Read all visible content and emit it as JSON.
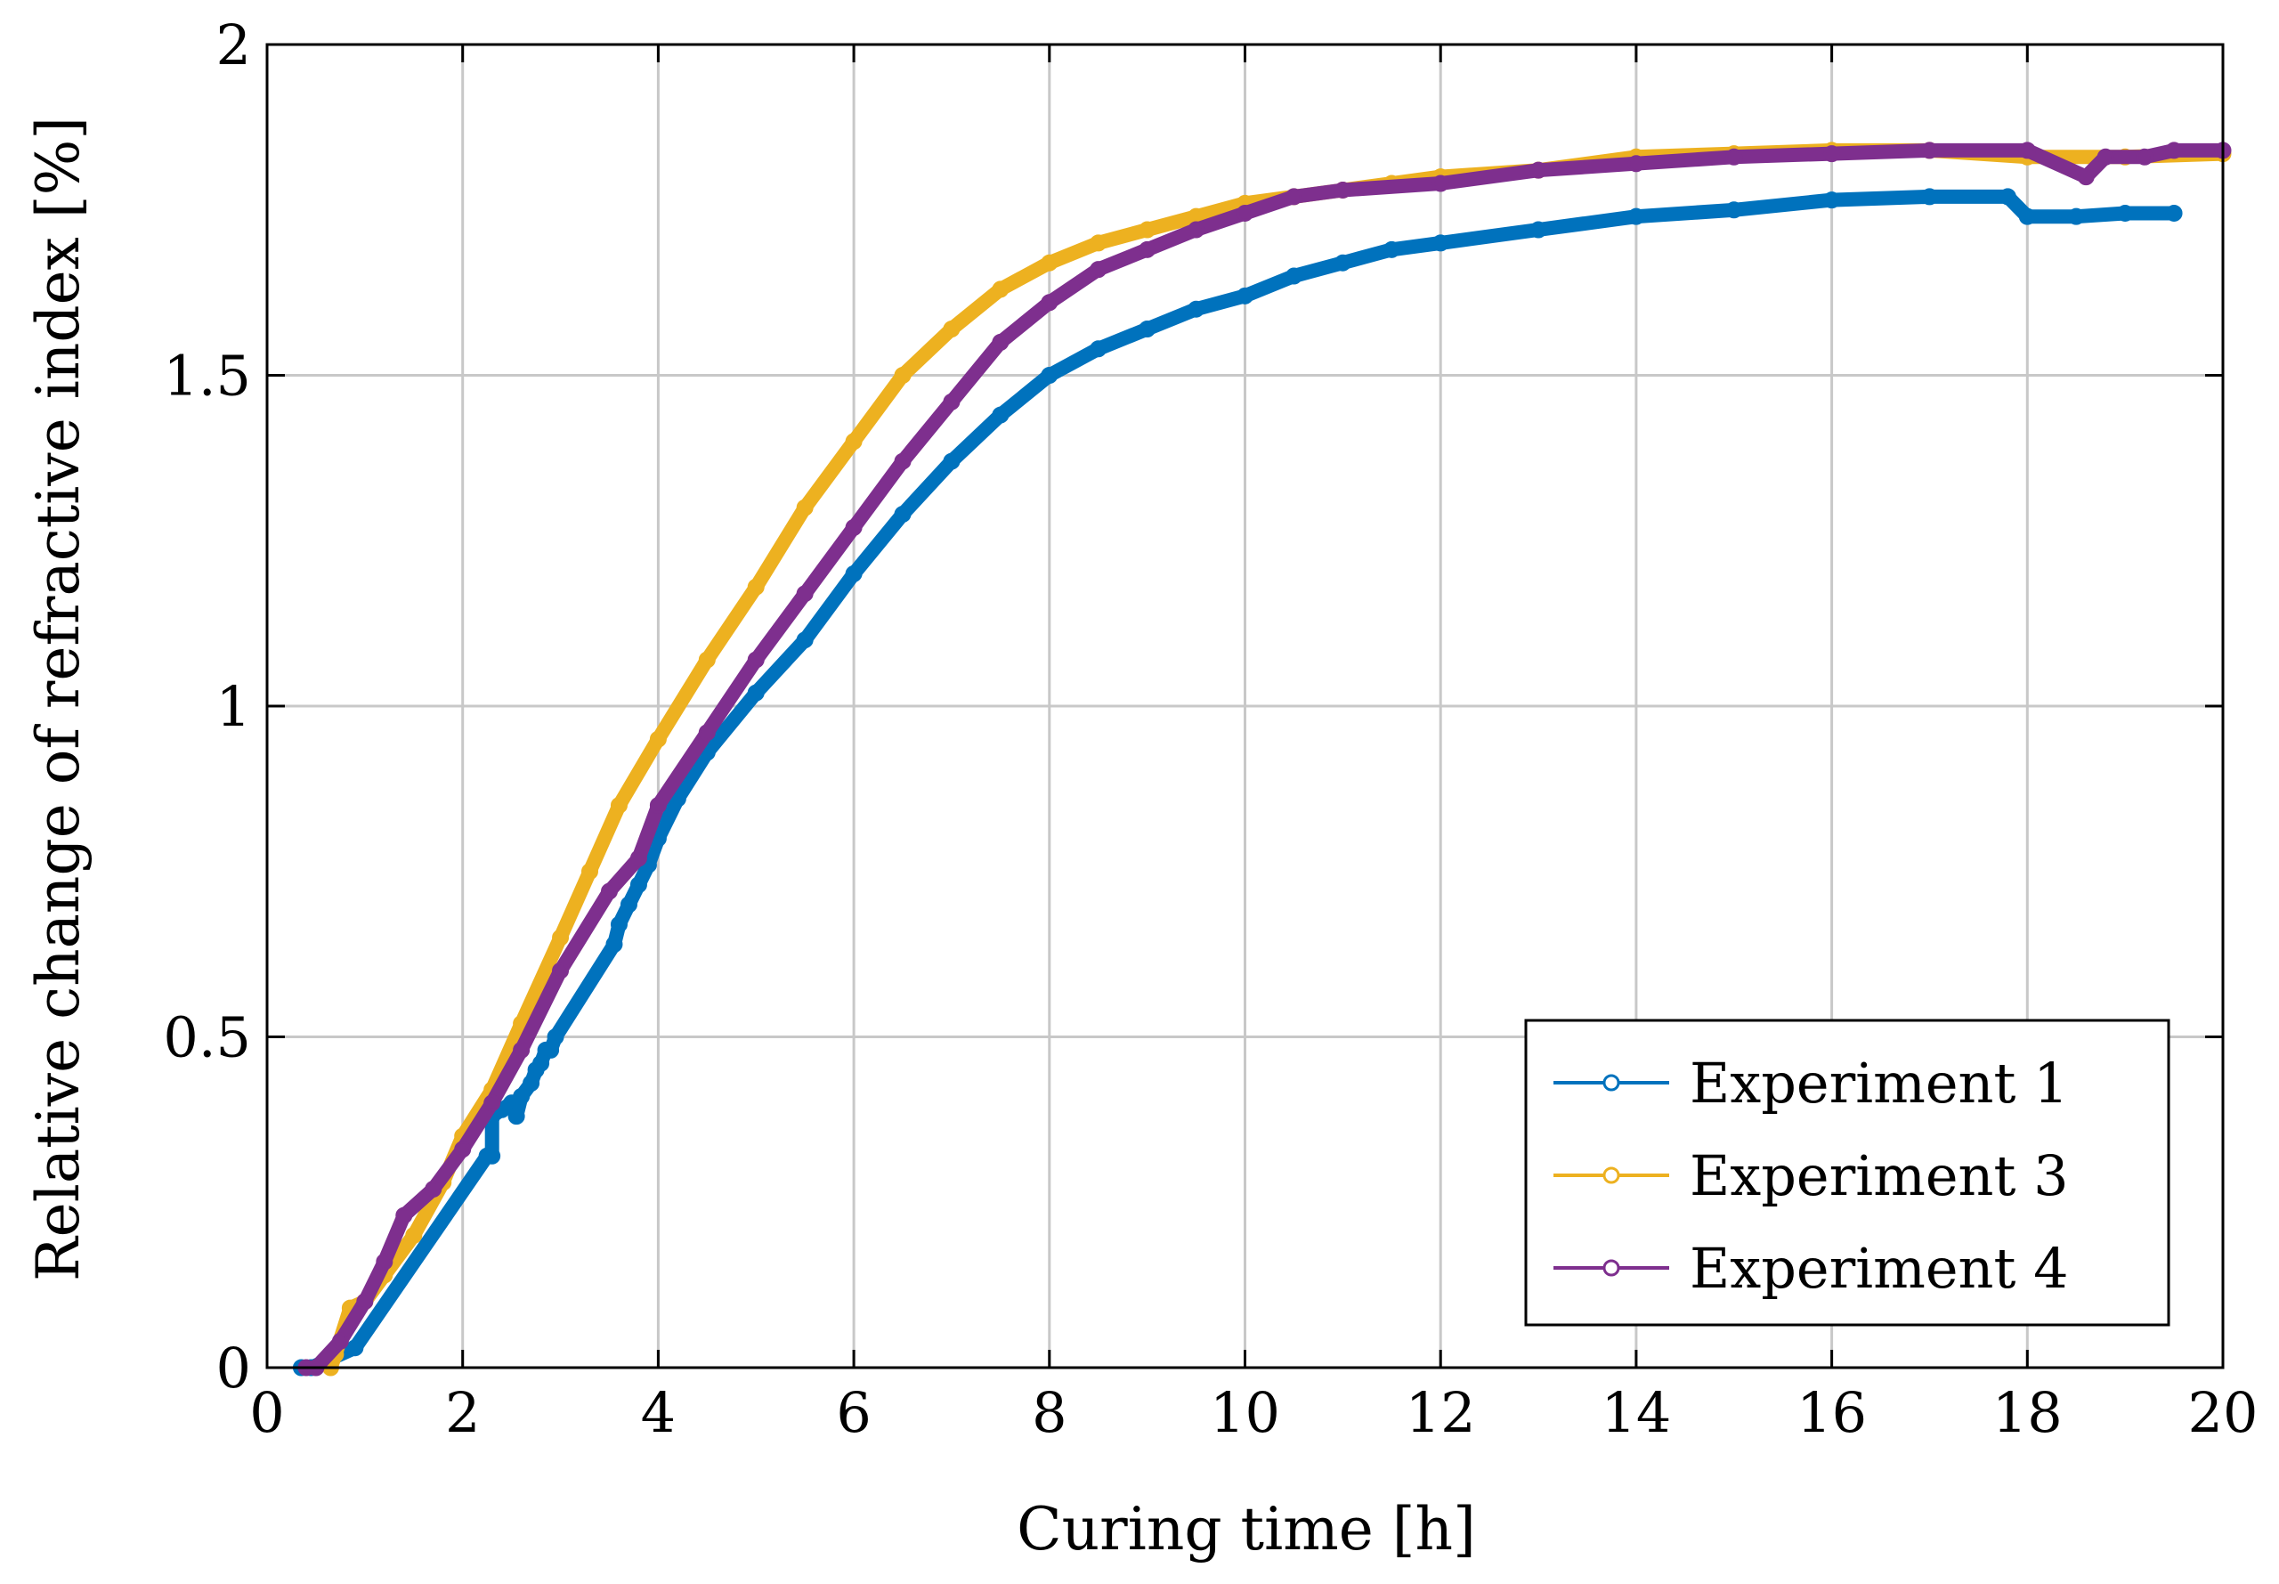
{
  "chart_data": {
    "type": "scatter",
    "title": "",
    "xlabel": "Curing time [h]",
    "ylabel": "Relative change of refractive index [%]",
    "xlim": [
      0,
      20
    ],
    "ylim": [
      0,
      2
    ],
    "xticks": [
      0,
      2,
      4,
      6,
      8,
      10,
      12,
      14,
      16,
      18,
      20
    ],
    "xtick_labels": [
      "0",
      "2",
      "4",
      "6",
      "8",
      "10",
      "12",
      "14",
      "16",
      "18",
      "20"
    ],
    "yticks": [
      0,
      0.5,
      1,
      1.5,
      2
    ],
    "ytick_labels": [
      "0",
      "0.5",
      "1",
      "1.5",
      "2"
    ],
    "grid": true,
    "legend_position": "bottom-right",
    "marker": "open-circle",
    "series": [
      {
        "name": "Experiment 1",
        "color": "#0072BD",
        "points": [
          [
            0.35,
            0.0
          ],
          [
            0.45,
            0.0
          ],
          [
            0.9,
            0.03
          ],
          [
            2.25,
            0.32
          ],
          [
            2.3,
            0.32
          ],
          [
            2.3,
            0.38
          ],
          [
            2.4,
            0.39
          ],
          [
            2.5,
            0.4
          ],
          [
            2.55,
            0.38
          ],
          [
            2.6,
            0.41
          ],
          [
            2.7,
            0.43
          ],
          [
            2.75,
            0.45
          ],
          [
            2.8,
            0.46
          ],
          [
            2.85,
            0.48
          ],
          [
            2.9,
            0.48
          ],
          [
            2.95,
            0.5
          ],
          [
            3.55,
            0.64
          ],
          [
            3.6,
            0.67
          ],
          [
            3.7,
            0.7
          ],
          [
            3.8,
            0.73
          ],
          [
            3.9,
            0.76
          ],
          [
            4.0,
            0.8
          ],
          [
            4.2,
            0.86
          ],
          [
            4.5,
            0.93
          ],
          [
            5.0,
            1.02
          ],
          [
            5.5,
            1.1
          ],
          [
            6.0,
            1.2
          ],
          [
            6.5,
            1.29
          ],
          [
            7.0,
            1.37
          ],
          [
            7.5,
            1.44
          ],
          [
            8.0,
            1.5
          ],
          [
            8.5,
            1.54
          ],
          [
            9.0,
            1.57
          ],
          [
            9.5,
            1.6
          ],
          [
            10.0,
            1.62
          ],
          [
            10.5,
            1.65
          ],
          [
            11.0,
            1.67
          ],
          [
            11.5,
            1.69
          ],
          [
            12.0,
            1.7
          ],
          [
            13.0,
            1.72
          ],
          [
            14.0,
            1.74
          ],
          [
            15.0,
            1.75
          ],
          [
            16.0,
            1.765
          ],
          [
            17.0,
            1.77
          ],
          [
            17.8,
            1.77
          ],
          [
            18.0,
            1.74
          ],
          [
            18.5,
            1.74
          ],
          [
            19.0,
            1.745
          ],
          [
            19.5,
            1.745
          ]
        ]
      },
      {
        "name": "Experiment 3",
        "color": "#EDB120",
        "points": [
          [
            0.65,
            0.0
          ],
          [
            0.7,
            0.02
          ],
          [
            0.85,
            0.09
          ],
          [
            1.0,
            0.1
          ],
          [
            1.2,
            0.14
          ],
          [
            1.5,
            0.2
          ],
          [
            1.8,
            0.28
          ],
          [
            2.0,
            0.35
          ],
          [
            2.3,
            0.42
          ],
          [
            2.6,
            0.52
          ],
          [
            3.0,
            0.65
          ],
          [
            3.3,
            0.75
          ],
          [
            3.6,
            0.85
          ],
          [
            4.0,
            0.95
          ],
          [
            4.5,
            1.07
          ],
          [
            5.0,
            1.18
          ],
          [
            5.5,
            1.3
          ],
          [
            6.0,
            1.4
          ],
          [
            6.5,
            1.5
          ],
          [
            7.0,
            1.57
          ],
          [
            7.5,
            1.63
          ],
          [
            8.0,
            1.67
          ],
          [
            8.5,
            1.7
          ],
          [
            9.0,
            1.72
          ],
          [
            9.5,
            1.74
          ],
          [
            10.0,
            1.76
          ],
          [
            10.5,
            1.77
          ],
          [
            11.0,
            1.78
          ],
          [
            11.5,
            1.79
          ],
          [
            12.0,
            1.8
          ],
          [
            13.0,
            1.81
          ],
          [
            14.0,
            1.83
          ],
          [
            15.0,
            1.835
          ],
          [
            16.0,
            1.84
          ],
          [
            17.0,
            1.84
          ],
          [
            18.0,
            1.83
          ],
          [
            19.0,
            1.83
          ],
          [
            20.0,
            1.835
          ]
        ]
      },
      {
        "name": "Experiment 4",
        "color": "#7E2F8E",
        "points": [
          [
            0.4,
            0.0
          ],
          [
            0.5,
            0.0
          ],
          [
            0.75,
            0.04
          ],
          [
            1.0,
            0.1
          ],
          [
            1.2,
            0.16
          ],
          [
            1.4,
            0.23
          ],
          [
            1.7,
            0.27
          ],
          [
            2.0,
            0.33
          ],
          [
            2.3,
            0.4
          ],
          [
            2.6,
            0.48
          ],
          [
            3.0,
            0.6
          ],
          [
            3.5,
            0.72
          ],
          [
            3.8,
            0.77
          ],
          [
            4.0,
            0.85
          ],
          [
            4.5,
            0.96
          ],
          [
            5.0,
            1.07
          ],
          [
            5.5,
            1.17
          ],
          [
            6.0,
            1.27
          ],
          [
            6.5,
            1.37
          ],
          [
            7.0,
            1.46
          ],
          [
            7.5,
            1.55
          ],
          [
            8.0,
            1.61
          ],
          [
            8.5,
            1.66
          ],
          [
            9.0,
            1.69
          ],
          [
            9.5,
            1.72
          ],
          [
            10.0,
            1.745
          ],
          [
            10.5,
            1.77
          ],
          [
            11.0,
            1.78
          ],
          [
            12.0,
            1.79
          ],
          [
            13.0,
            1.81
          ],
          [
            14.0,
            1.82
          ],
          [
            15.0,
            1.83
          ],
          [
            16.0,
            1.835
          ],
          [
            17.0,
            1.84
          ],
          [
            18.0,
            1.84
          ],
          [
            18.6,
            1.8
          ],
          [
            18.8,
            1.83
          ],
          [
            19.2,
            1.83
          ],
          [
            19.5,
            1.84
          ],
          [
            20.0,
            1.84
          ]
        ]
      }
    ]
  }
}
